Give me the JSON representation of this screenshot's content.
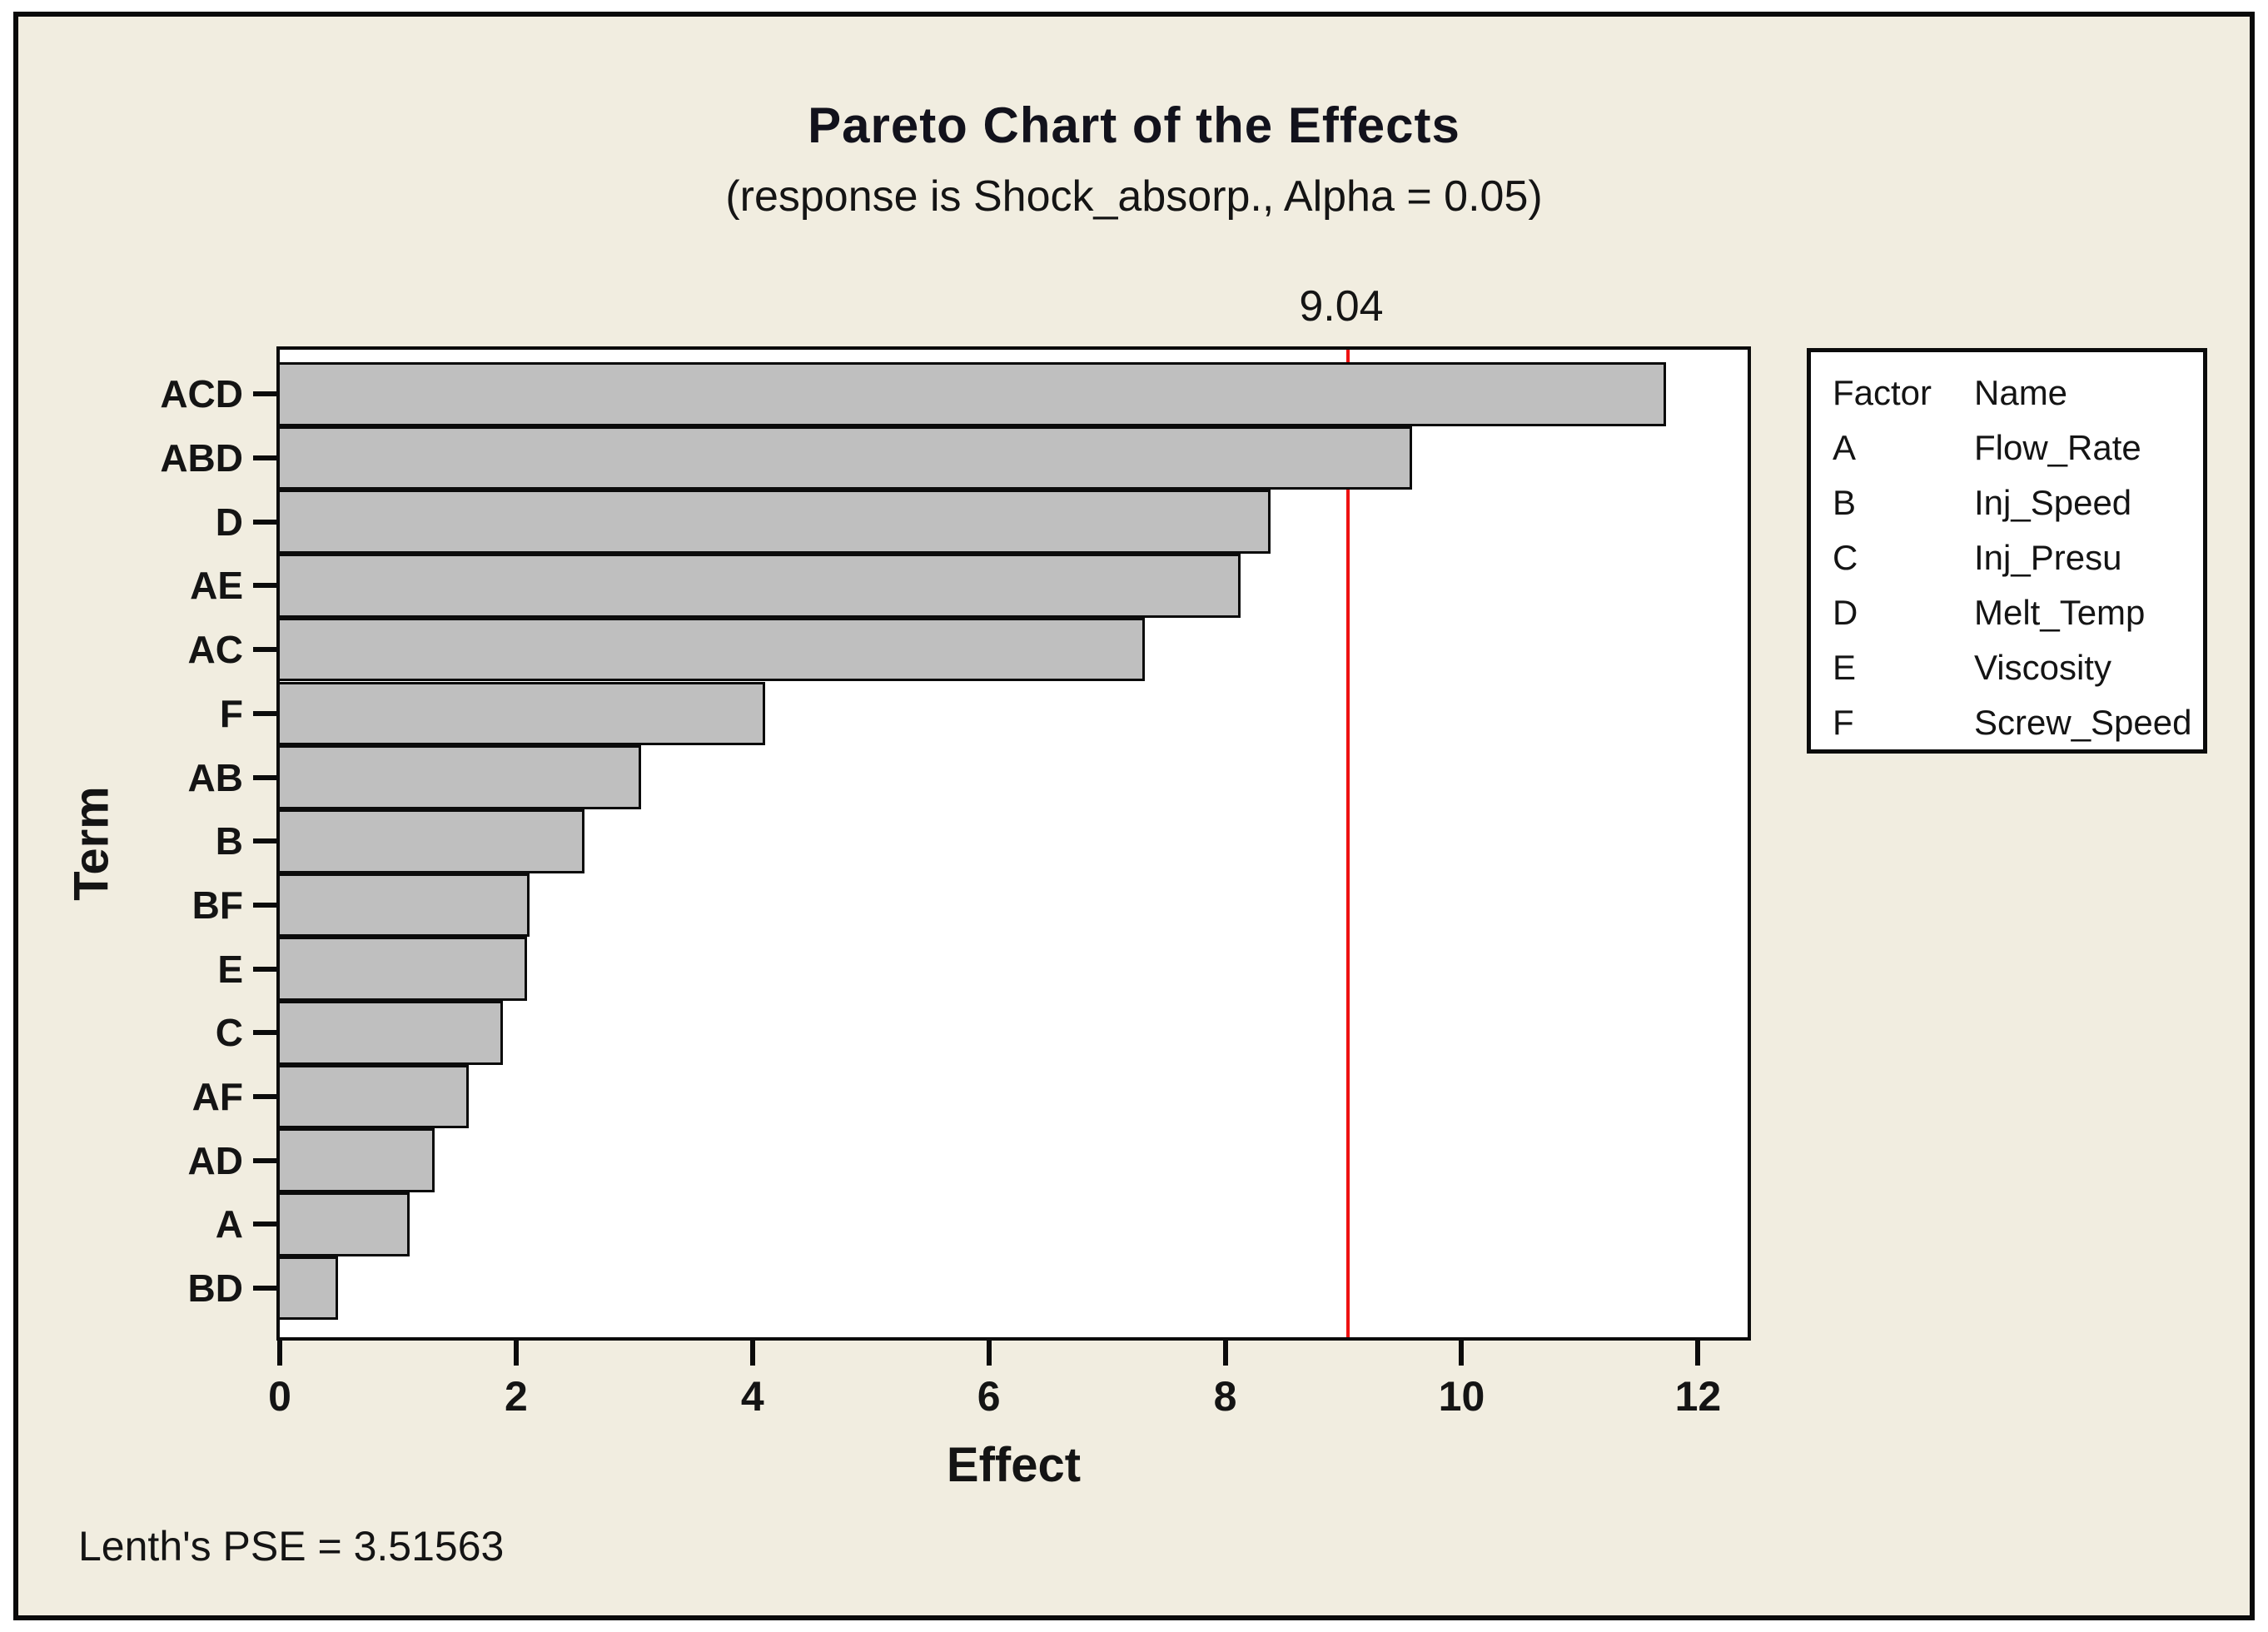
{
  "window": {
    "background": "#ffffff",
    "canvas_background": "#f1ede0",
    "frame_border_color": "#0a0a0a"
  },
  "chart_data": {
    "type": "bar",
    "orientation": "horizontal",
    "title": "Pareto Chart of the Effects",
    "subtitle": "(response is Shock_absorp., Alpha = 0.05)",
    "xlabel": "Effect",
    "ylabel": "Term",
    "categories": [
      "ACD",
      "ABD",
      "D",
      "AE",
      "AC",
      "F",
      "AB",
      "B",
      "BF",
      "E",
      "C",
      "AF",
      "AD",
      "A",
      "BD"
    ],
    "values": [
      11.73,
      9.58,
      8.38,
      8.13,
      7.32,
      4.11,
      3.06,
      2.58,
      2.11,
      2.09,
      1.89,
      1.6,
      1.31,
      1.1,
      0.49
    ],
    "xlim": [
      0,
      12.42
    ],
    "xticks": [
      0,
      2,
      4,
      6,
      8,
      10,
      12
    ],
    "grid": false,
    "legend_position": "right",
    "reference_line": {
      "value": 9.04,
      "label": "9.04",
      "color": "#ee1111"
    },
    "bar_fill": "#bfbfbf",
    "bar_border": "#0b0b0b",
    "footnote": "Lenth's PSE = 3.51563",
    "legend": {
      "headers": [
        "Factor",
        "Name"
      ],
      "rows": [
        {
          "factor": "A",
          "name": "Flow_Rate"
        },
        {
          "factor": "B",
          "name": "Inj_Speed"
        },
        {
          "factor": "C",
          "name": "Inj_Presu"
        },
        {
          "factor": "D",
          "name": "Melt_Temp"
        },
        {
          "factor": "E",
          "name": "Viscosity"
        },
        {
          "factor": "F",
          "name": "Screw_Speed"
        }
      ]
    }
  }
}
